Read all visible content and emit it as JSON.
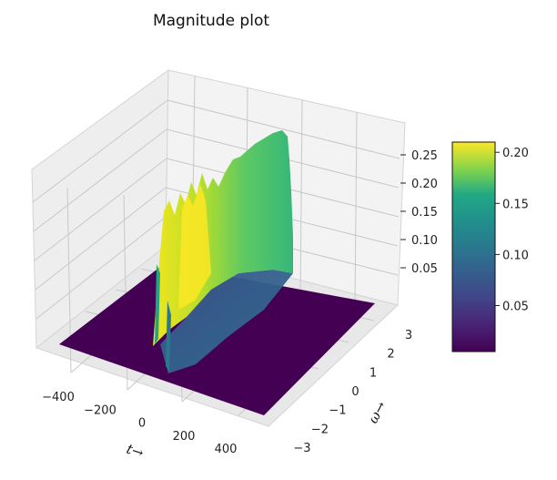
{
  "chart_data": {
    "type": "surface",
    "title": "Magnitude plot",
    "xlabel": "t→",
    "ylabel": "ω→",
    "zlabel": "",
    "colormap": "viridis",
    "grid": true,
    "xlim": [
      -500,
      500
    ],
    "ylim": [
      -3.2,
      3.2
    ],
    "zlim": [
      0,
      0.27
    ],
    "x_ticks": [
      -400,
      -200,
      0,
      200,
      400
    ],
    "y_ticks": [
      -3,
      -2,
      -1,
      0,
      1,
      2,
      3
    ],
    "z_ticks": [
      0.05,
      0.1,
      0.15,
      0.2,
      0.25
    ],
    "z_tick_labels": [
      "0.05",
      "0.10",
      "0.15",
      "0.20",
      "0.25"
    ],
    "colorbar": {
      "range": [
        0.005,
        0.21
      ],
      "ticks": [
        0.05,
        0.1,
        0.15,
        0.2
      ],
      "tick_labels": [
        "0.05",
        "0.10",
        "0.15",
        "0.20"
      ]
    },
    "surface": {
      "support": {
        "t_min": -40,
        "t_max": 200,
        "omega_min": -2.8,
        "omega_max": 1.3
      },
      "ridge": [
        {
          "t": -40,
          "omega": -2.8,
          "z": 0.15
        },
        {
          "t": 20,
          "omega": -1.6,
          "z": 0.2
        },
        {
          "t": 80,
          "omega": -0.4,
          "z": 0.18
        },
        {
          "t": 140,
          "omega": 0.5,
          "z": 0.22
        },
        {
          "t": 200,
          "omega": 1.3,
          "z": 0.26
        }
      ]
    }
  }
}
